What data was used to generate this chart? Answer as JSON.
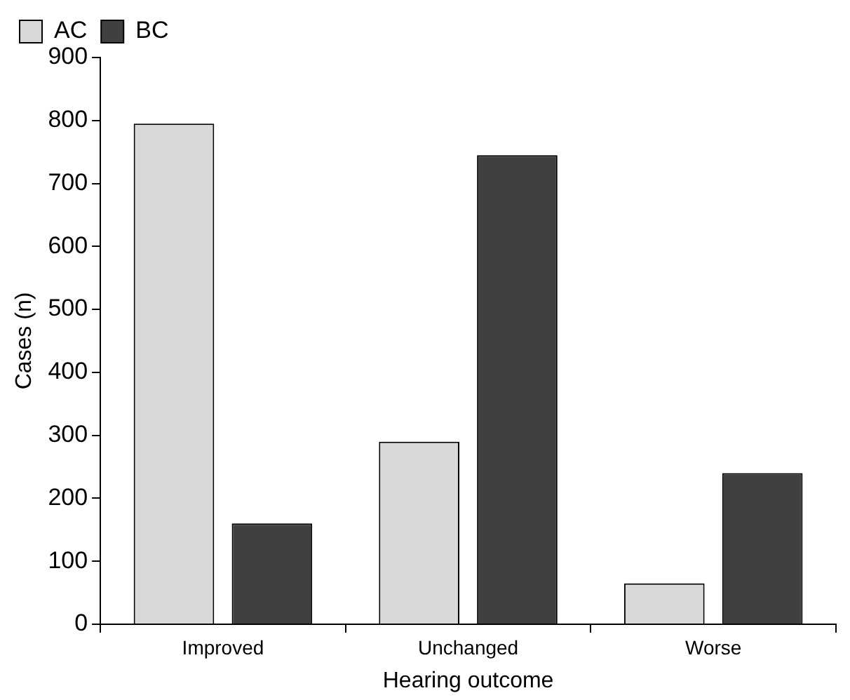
{
  "chart_data": {
    "type": "bar",
    "xlabel": "Hearing outcome",
    "ylabel": "Cases (n)",
    "categories": [
      "Improved",
      "Unchanged",
      "Worse"
    ],
    "series": [
      {
        "name": "AC",
        "color": "#d9d9d9",
        "values": [
          795,
          290,
          65
        ]
      },
      {
        "name": "BC",
        "color": "#404040",
        "values": [
          160,
          745,
          240
        ]
      }
    ],
    "ylim": [
      0,
      900
    ],
    "yticks": [
      0,
      100,
      200,
      300,
      400,
      500,
      600,
      700,
      800,
      900
    ],
    "grid": false,
    "legend": "top left"
  }
}
